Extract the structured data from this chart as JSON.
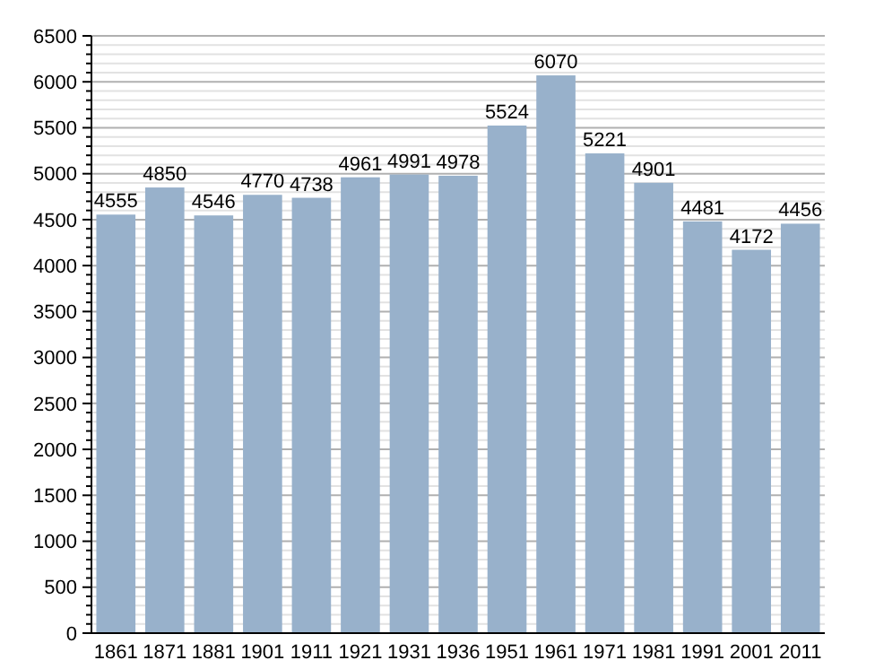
{
  "chart_data": {
    "type": "bar",
    "categories": [
      "1861",
      "1871",
      "1881",
      "1901",
      "1911",
      "1921",
      "1931",
      "1936",
      "1951",
      "1961",
      "1971",
      "1981",
      "1991",
      "2001",
      "2011"
    ],
    "values": [
      4555,
      4850,
      4546,
      4770,
      4738,
      4961,
      4991,
      4978,
      5524,
      6070,
      5221,
      4901,
      4481,
      4172,
      4456
    ],
    "color": "#98b1cb",
    "data_labels": true,
    "grid": "y",
    "ylim": [
      0,
      6500
    ],
    "yticks": [
      0,
      {
        "value": 100,
        "label": null
      },
      {
        "value": 200,
        "label": null
      },
      {
        "value": 300,
        "label": null
      },
      {
        "value": 400,
        "label": null
      },
      500,
      {
        "value": 600,
        "label": null
      },
      {
        "value": 700,
        "label": null
      },
      {
        "value": 800,
        "label": null
      },
      {
        "value": 900,
        "label": null
      },
      1000,
      {
        "value": 1100,
        "label": null
      },
      {
        "value": 1200,
        "label": null
      },
      {
        "value": 1300,
        "label": null
      },
      {
        "value": 1400,
        "label": null
      },
      1500,
      {
        "value": 1600,
        "label": null
      },
      {
        "value": 1700,
        "label": null
      },
      {
        "value": 1800,
        "label": null
      },
      {
        "value": 1900,
        "label": null
      },
      2000,
      {
        "value": 2100,
        "label": null
      },
      {
        "value": 2200,
        "label": null
      },
      {
        "value": 2300,
        "label": null
      },
      {
        "value": 2400,
        "label": null
      },
      2500,
      {
        "value": 2600,
        "label": null
      },
      {
        "value": 2700,
        "label": null
      },
      {
        "value": 2800,
        "label": null
      },
      {
        "value": 2900,
        "label": null
      },
      3000,
      {
        "value": 3100,
        "label": null
      },
      {
        "value": 3200,
        "label": null
      },
      {
        "value": 3300,
        "label": null
      },
      {
        "value": 3400,
        "label": null
      },
      3500,
      {
        "value": 3600,
        "label": null
      },
      {
        "value": 3700,
        "label": null
      },
      {
        "value": 3800,
        "label": null
      },
      {
        "value": 3900,
        "label": null
      },
      4000,
      {
        "value": 4100,
        "label": null
      },
      {
        "value": 4200,
        "label": null
      },
      {
        "value": 4300,
        "label": null
      },
      {
        "value": 4400,
        "label": null
      },
      4500,
      {
        "value": 4600,
        "label": null
      },
      {
        "value": 4700,
        "label": null
      },
      {
        "value": 4800,
        "label": null
      },
      {
        "value": 4900,
        "label": null
      },
      5000,
      {
        "value": 5100,
        "label": null
      },
      {
        "value": 5200,
        "label": null
      },
      {
        "value": 5300,
        "label": null
      },
      {
        "value": 5400,
        "label": null
      },
      5500,
      {
        "value": 5600,
        "label": null
      },
      {
        "value": 5700,
        "label": null
      },
      {
        "value": 5800,
        "label": null
      },
      {
        "value": 5900,
        "label": null
      },
      6000,
      {
        "value": 6100,
        "label": null
      },
      {
        "value": 6200,
        "label": null
      },
      {
        "value": 6300,
        "label": null
      },
      {
        "value": 6400,
        "label": null
      },
      6500
    ]
  }
}
